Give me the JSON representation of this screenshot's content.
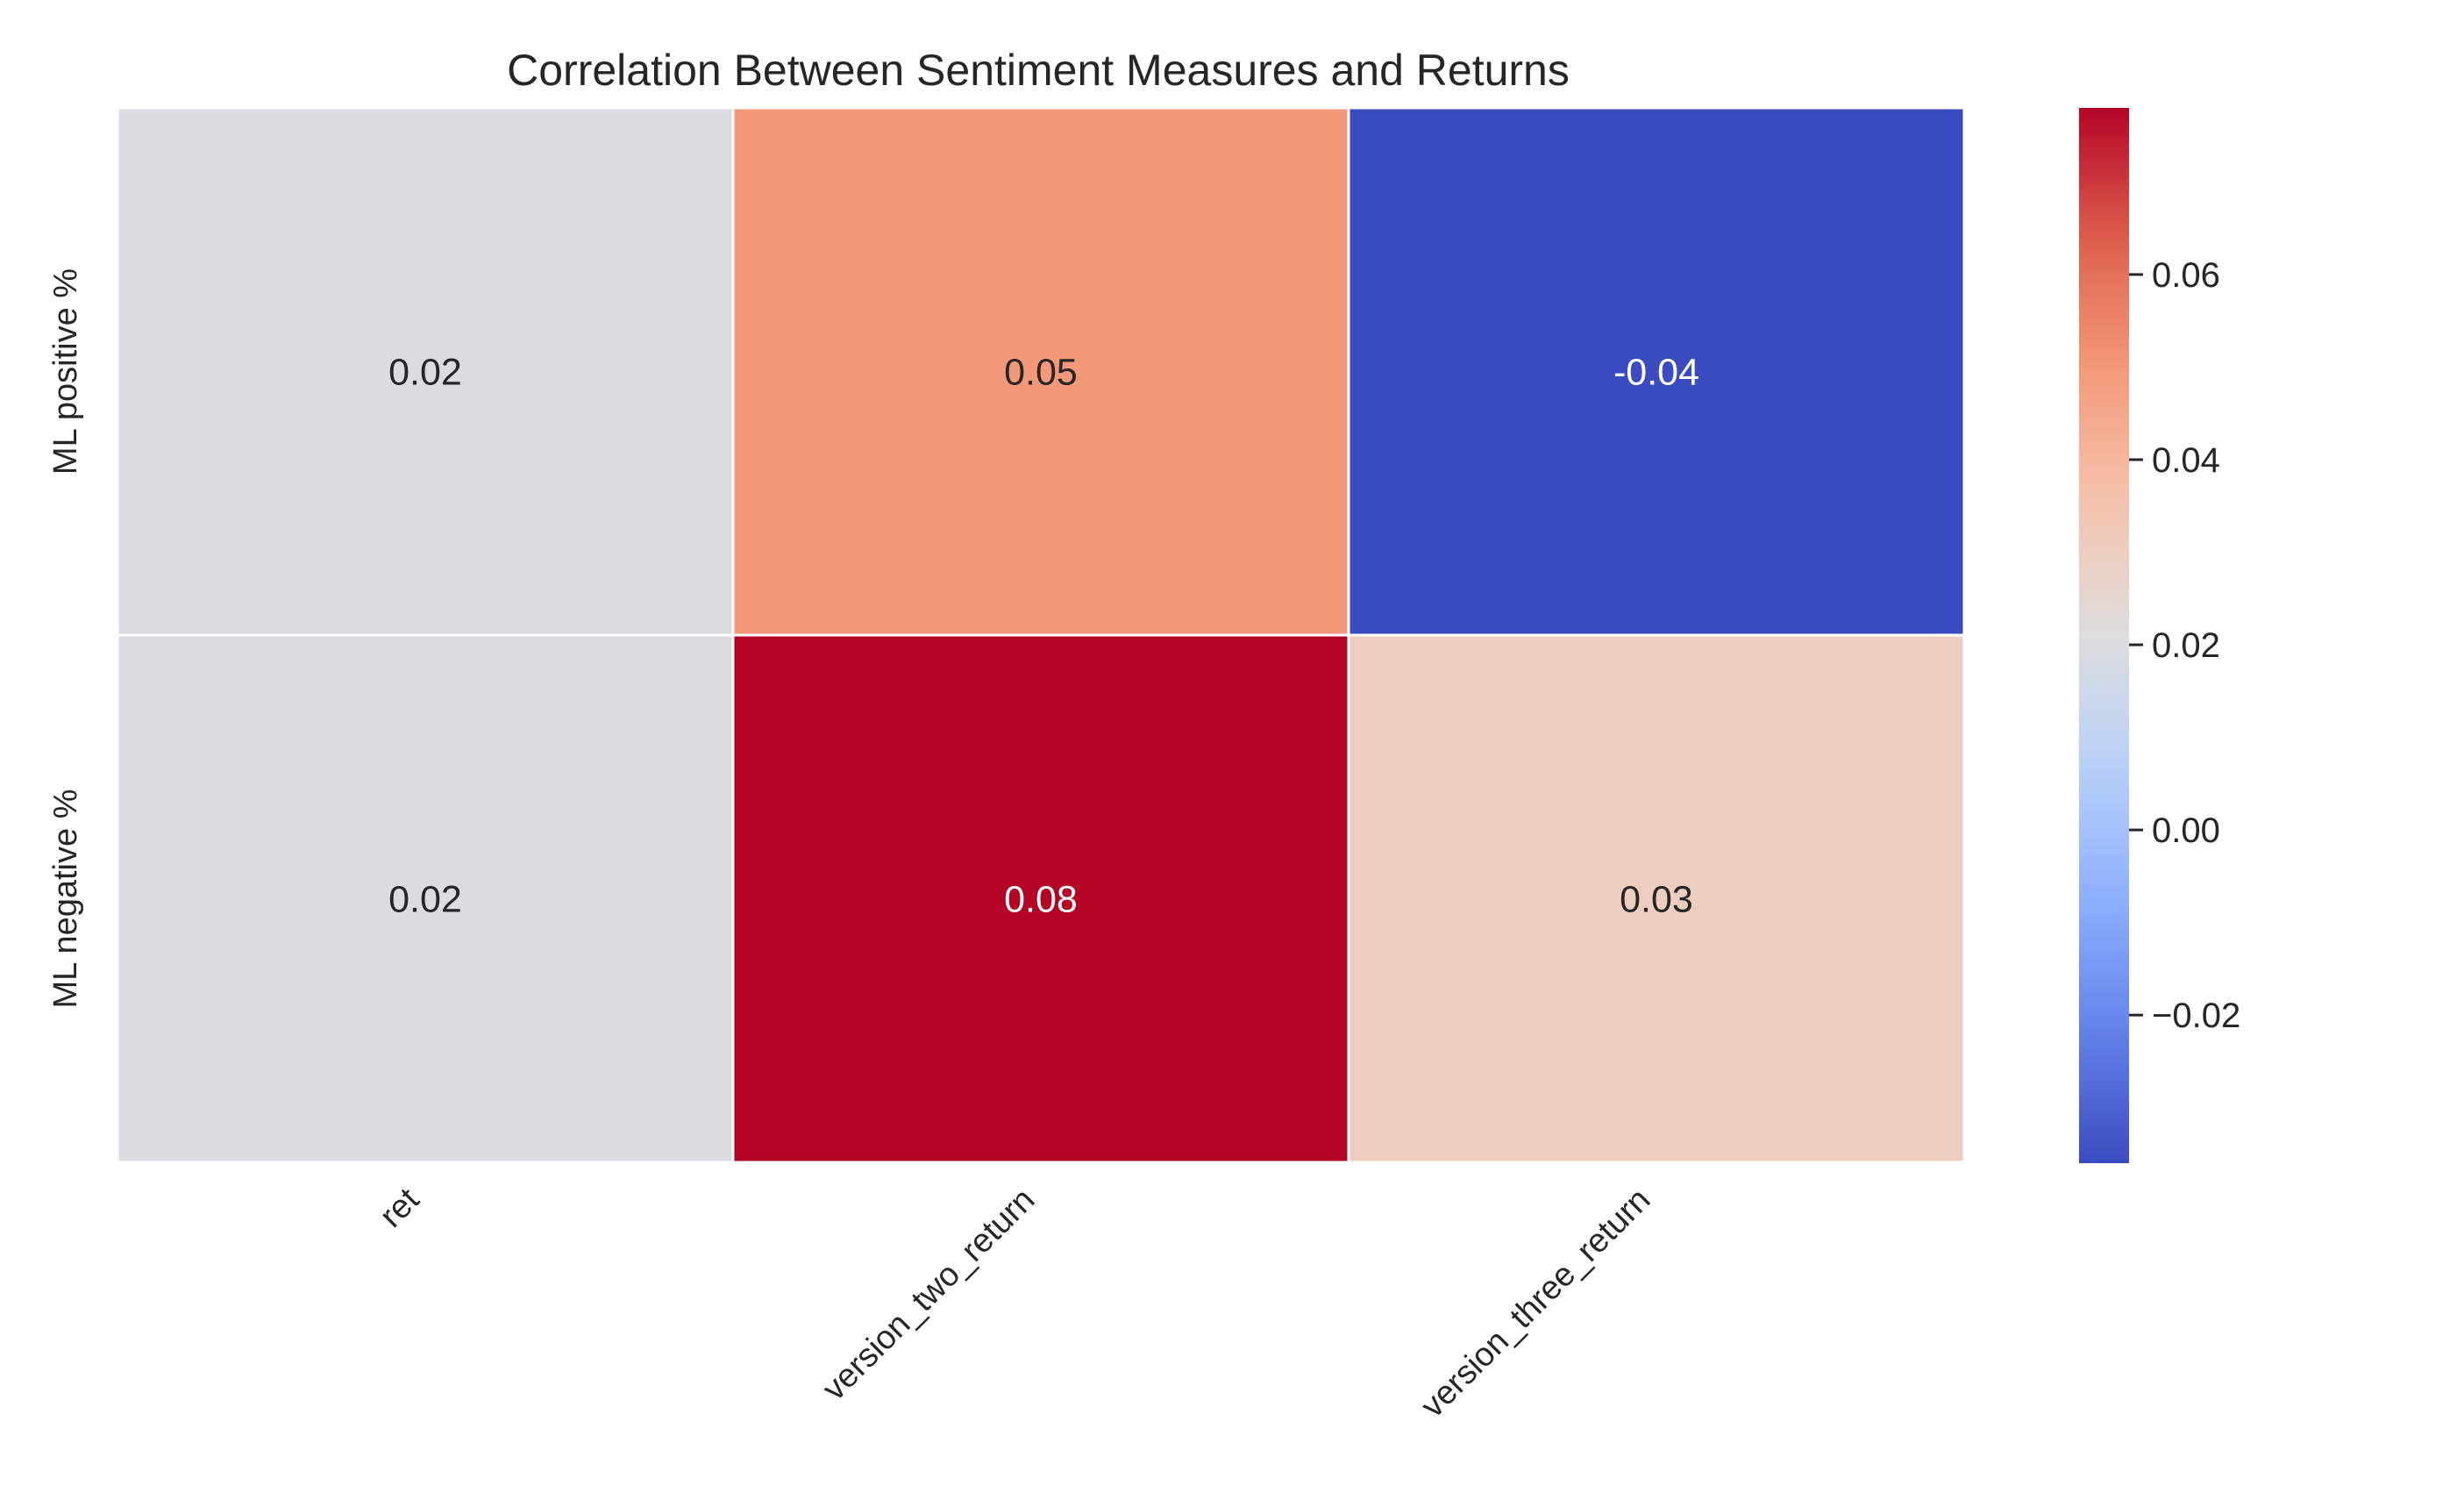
{
  "chart_data": {
    "type": "heatmap",
    "title": "Correlation Between Sentiment Measures and Returns",
    "x_labels": [
      "ret",
      "version_two_return",
      "version_three_return"
    ],
    "y_labels": [
      "ML positive %",
      "ML negative %"
    ],
    "values": [
      [
        0.02,
        0.05,
        -0.04
      ],
      [
        0.02,
        0.08,
        0.03
      ]
    ],
    "cell_labels": [
      [
        "0.02",
        "0.05",
        "-0.04"
      ],
      [
        "0.02",
        "0.08",
        "0.03"
      ]
    ],
    "colormap": "coolwarm",
    "color_range": [
      -0.036,
      0.078
    ],
    "colorbar_ticks": [
      -0.02,
      0.0,
      0.02,
      0.04,
      0.06
    ],
    "colorbar_tick_labels": [
      "−0.02",
      "0.00",
      "0.02",
      "0.04",
      "0.06"
    ],
    "grid_line_color": "#ffffff"
  }
}
